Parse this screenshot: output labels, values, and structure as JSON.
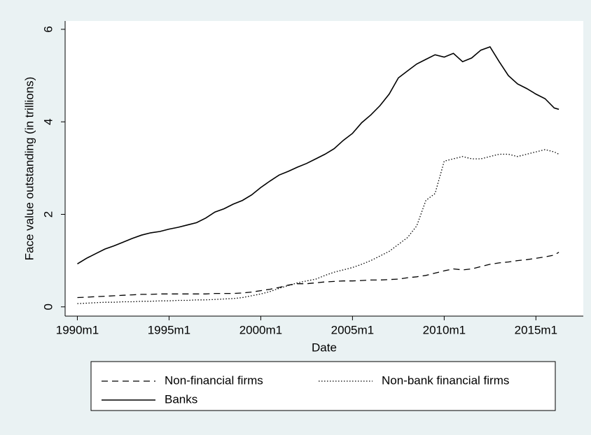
{
  "chart_data": {
    "type": "line",
    "x_label": "Date",
    "y_label": "Face value outstanding (in trillions)",
    "x": [
      "1990m1",
      "1990m7",
      "1991m1",
      "1991m7",
      "1992m1",
      "1992m7",
      "1993m1",
      "1993m7",
      "1994m1",
      "1994m7",
      "1995m1",
      "1995m7",
      "1996m1",
      "1996m7",
      "1997m1",
      "1997m7",
      "1998m1",
      "1998m7",
      "1999m1",
      "1999m7",
      "2000m1",
      "2000m7",
      "2001m1",
      "2001m7",
      "2002m1",
      "2002m7",
      "2003m1",
      "2003m7",
      "2004m1",
      "2004m7",
      "2005m1",
      "2005m7",
      "2006m1",
      "2006m7",
      "2007m1",
      "2007m7",
      "2008m1",
      "2008m7",
      "2009m1",
      "2009m7",
      "2010m1",
      "2010m7",
      "2011m1",
      "2011m7",
      "2012m1",
      "2012m7",
      "2013m1",
      "2013m7",
      "2014m1",
      "2014m7",
      "2015m1",
      "2015m7",
      "2016m1",
      "2016m4"
    ],
    "series": [
      {
        "name": "Non-financial firms",
        "color": "#000000",
        "style": "dash",
        "values": [
          0.2,
          0.21,
          0.22,
          0.23,
          0.24,
          0.25,
          0.26,
          0.27,
          0.27,
          0.28,
          0.28,
          0.28,
          0.28,
          0.28,
          0.28,
          0.29,
          0.29,
          0.29,
          0.3,
          0.32,
          0.35,
          0.38,
          0.42,
          0.47,
          0.5,
          0.5,
          0.52,
          0.54,
          0.55,
          0.56,
          0.56,
          0.57,
          0.58,
          0.58,
          0.59,
          0.6,
          0.63,
          0.65,
          0.68,
          0.73,
          0.78,
          0.82,
          0.8,
          0.82,
          0.87,
          0.92,
          0.95,
          0.97,
          1.0,
          1.02,
          1.05,
          1.08,
          1.12,
          1.18
        ]
      },
      {
        "name": "Non-bank financial firms",
        "color": "#000000",
        "style": "dot",
        "values": [
          0.07,
          0.08,
          0.09,
          0.1,
          0.1,
          0.11,
          0.11,
          0.12,
          0.12,
          0.13,
          0.13,
          0.14,
          0.14,
          0.15,
          0.15,
          0.16,
          0.17,
          0.18,
          0.2,
          0.24,
          0.28,
          0.33,
          0.4,
          0.46,
          0.52,
          0.56,
          0.6,
          0.68,
          0.75,
          0.8,
          0.85,
          0.92,
          1.0,
          1.1,
          1.2,
          1.35,
          1.5,
          1.75,
          2.3,
          2.45,
          3.15,
          3.2,
          3.25,
          3.2,
          3.2,
          3.25,
          3.3,
          3.3,
          3.25,
          3.3,
          3.35,
          3.4,
          3.35,
          3.3
        ]
      },
      {
        "name": "Banks",
        "color": "#000000",
        "style": "solid",
        "values": [
          0.93,
          1.05,
          1.15,
          1.25,
          1.32,
          1.4,
          1.48,
          1.55,
          1.6,
          1.63,
          1.68,
          1.72,
          1.77,
          1.82,
          1.92,
          2.05,
          2.12,
          2.22,
          2.3,
          2.42,
          2.58,
          2.72,
          2.85,
          2.93,
          3.02,
          3.1,
          3.2,
          3.3,
          3.42,
          3.6,
          3.75,
          3.98,
          4.15,
          4.35,
          4.6,
          4.95,
          5.1,
          5.25,
          5.35,
          5.45,
          5.4,
          5.48,
          5.3,
          5.38,
          5.55,
          5.62,
          5.3,
          5.0,
          4.82,
          4.72,
          4.6,
          4.5,
          4.3,
          4.27
        ]
      }
    ],
    "xlim": [
      "1989m5",
      "2017m8"
    ],
    "xticks": [
      "1990m1",
      "1995m1",
      "2000m1",
      "2005m1",
      "2010m1",
      "2015m1"
    ],
    "ylim": [
      -0.2,
      6.18
    ],
    "yticks": [
      0,
      2,
      4,
      6
    ],
    "grid": false,
    "legend": "bottom"
  }
}
